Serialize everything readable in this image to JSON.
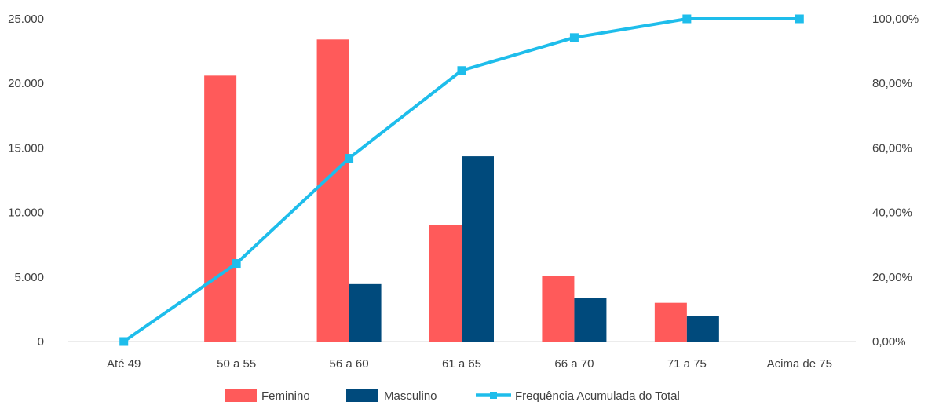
{
  "chart_data": {
    "type": "bar",
    "categories": [
      "Até 49",
      "50 a 55",
      "56 a 60",
      "61 a 65",
      "66 a 70",
      "71 a 75",
      "Acima de 75"
    ],
    "series": [
      {
        "name": "Feminino",
        "type": "bar",
        "axis": "left",
        "color": "#FF5A5A",
        "values": [
          0,
          20600,
          23400,
          9050,
          5100,
          3000,
          0
        ]
      },
      {
        "name": "Masculino",
        "type": "bar",
        "axis": "left",
        "color": "#004A7C",
        "values": [
          0,
          0,
          4450,
          14350,
          3400,
          1950,
          0
        ]
      },
      {
        "name": "Frequência Acumulada do Total",
        "type": "line",
        "axis": "right",
        "color": "#1EBDEB",
        "marker": "square",
        "values": [
          0,
          0.242,
          0.568,
          0.84,
          0.942,
          1.0,
          1.0
        ]
      }
    ],
    "y_left": {
      "ylim": [
        0,
        25000
      ],
      "ticks": [
        0,
        5000,
        10000,
        15000,
        20000,
        25000
      ],
      "tick_labels": [
        "0",
        "5.000",
        "10.000",
        "15.000",
        "20.000",
        "25.000"
      ]
    },
    "y_right": {
      "ylim": [
        0,
        1
      ],
      "ticks": [
        0,
        0.2,
        0.4,
        0.6,
        0.8,
        1.0
      ],
      "tick_labels": [
        "0,00%",
        "20,00%",
        "40,00%",
        "60,00%",
        "80,00%",
        "100,00%"
      ]
    },
    "grid": false,
    "legend_position": "bottom",
    "title": "",
    "xlabel": "",
    "ylabel": ""
  }
}
